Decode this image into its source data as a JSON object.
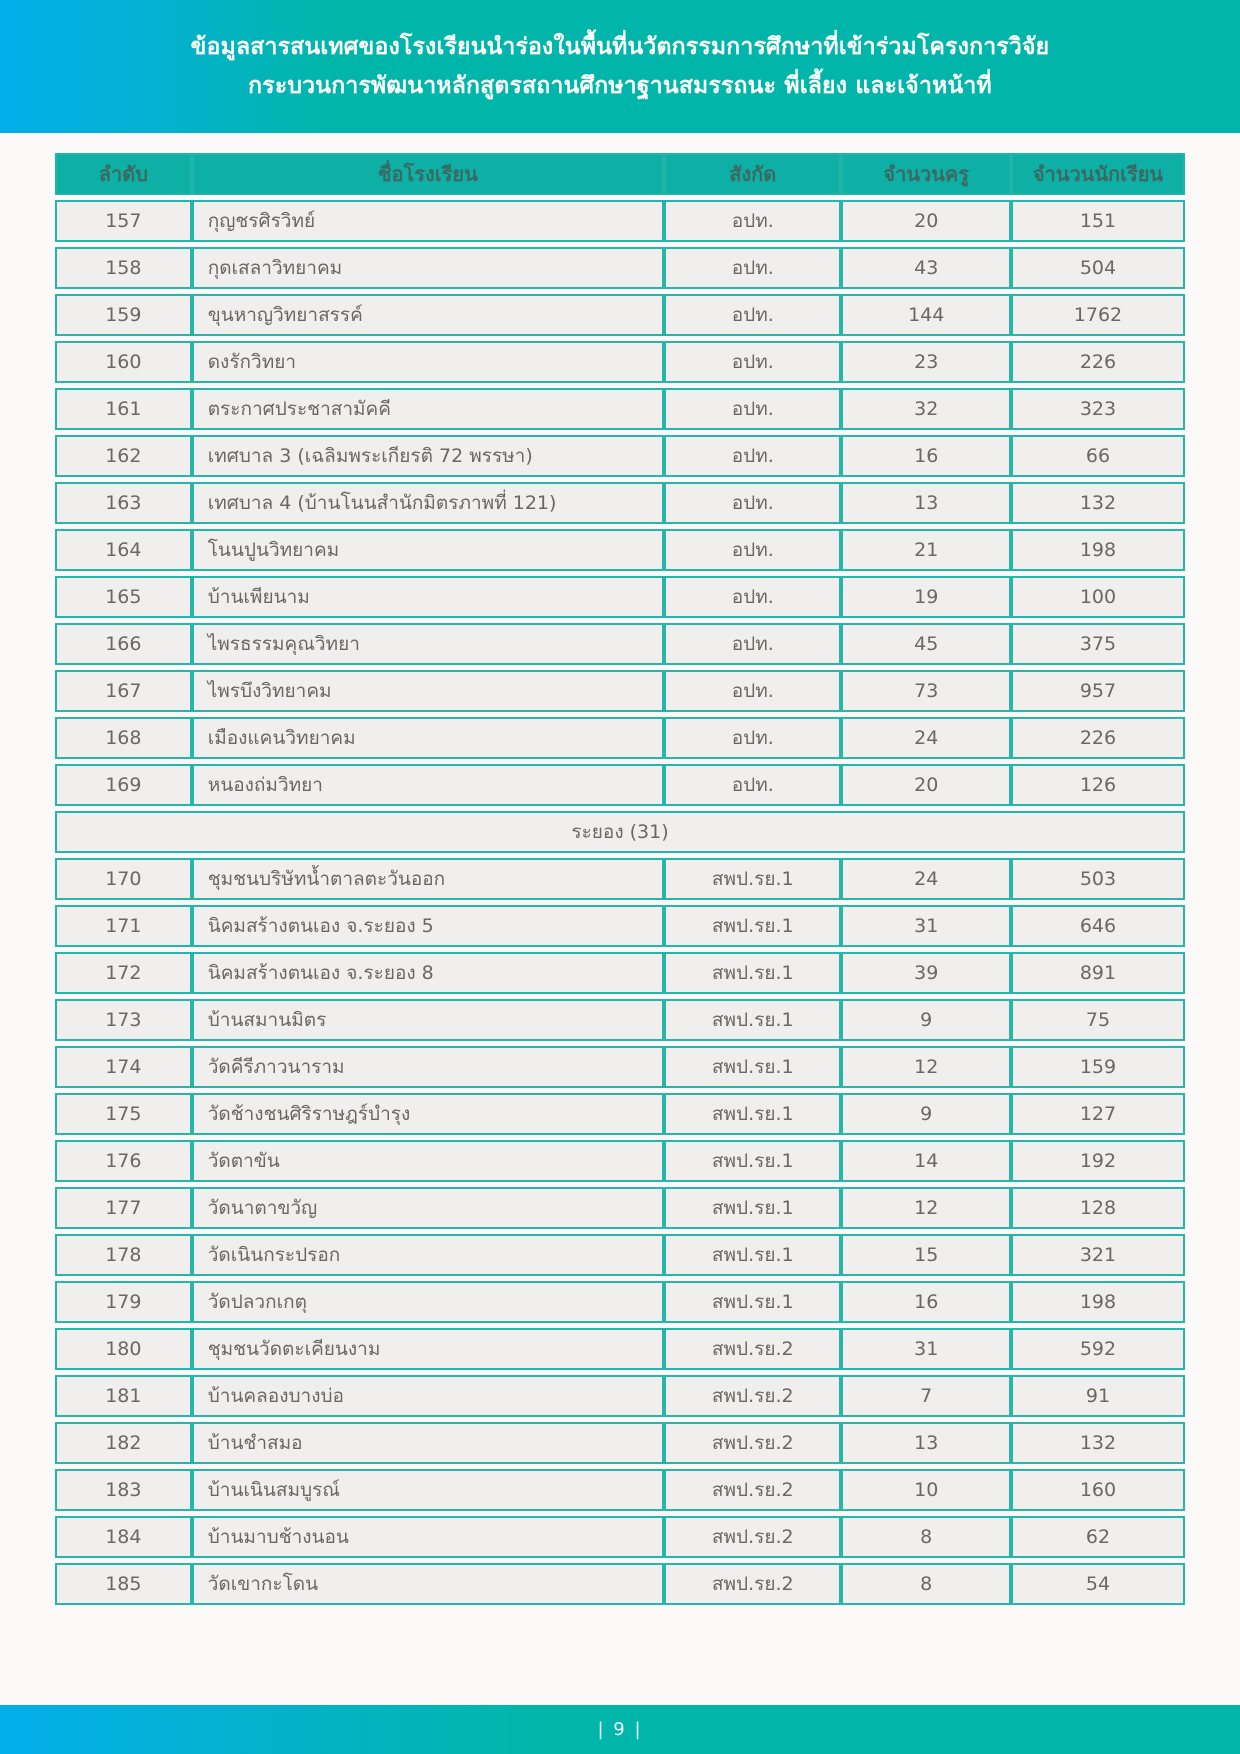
{
  "banner": {
    "line1": "ข้อมูลสารสนเทศของโรงเรียนนำร่องในพื้นที่นวัตกรรมการศึกษาที่เข้าร่วมโครงการวิจัย",
    "line2": "กระบวนการพัฒนาหลักสูตรสถานศึกษาฐานสมรรถนะ พี่เลี้ยง และเจ้าหน้าที่"
  },
  "table": {
    "columns": [
      "ลำดับ",
      "ชื่อโรงเรียน",
      "สังกัด",
      "จำนวนครู",
      "จำนวนนักเรียน"
    ],
    "rows": [
      {
        "type": "data",
        "no": "157",
        "name": "กุญชรศิรวิทย์",
        "org": "อปท.",
        "teachers": "20",
        "students": "151"
      },
      {
        "type": "data",
        "no": "158",
        "name": "กุดเสลาวิทยาคม",
        "org": "อปท.",
        "teachers": "43",
        "students": "504"
      },
      {
        "type": "data",
        "no": "159",
        "name": "ขุนหาญวิทยาสรรค์",
        "org": "อปท.",
        "teachers": "144",
        "students": "1762"
      },
      {
        "type": "data",
        "no": "160",
        "name": "ดงรักวิทยา",
        "org": "อปท.",
        "teachers": "23",
        "students": "226"
      },
      {
        "type": "data",
        "no": "161",
        "name": "ตระกาศประชาสามัคคี",
        "org": "อปท.",
        "teachers": "32",
        "students": "323"
      },
      {
        "type": "data",
        "no": "162",
        "name": "เทศบาล 3 (เฉลิมพระเกียรติ 72 พรรษา)",
        "org": "อปท.",
        "teachers": "16",
        "students": "66"
      },
      {
        "type": "data",
        "no": "163",
        "name": "เทศบาล 4 (บ้านโนนสำนักมิตรภาพที่ 121)",
        "org": "อปท.",
        "teachers": "13",
        "students": "132"
      },
      {
        "type": "data",
        "no": "164",
        "name": "โนนปูนวิทยาคม",
        "org": "อปท.",
        "teachers": "21",
        "students": "198"
      },
      {
        "type": "data",
        "no": "165",
        "name": "บ้านเพียนาม",
        "org": "อปท.",
        "teachers": "19",
        "students": "100"
      },
      {
        "type": "data",
        "no": "166",
        "name": "ไพรธรรมคุณวิทยา",
        "org": "อปท.",
        "teachers": "45",
        "students": "375"
      },
      {
        "type": "data",
        "no": "167",
        "name": "ไพรบึงวิทยาคม",
        "org": "อปท.",
        "teachers": "73",
        "students": "957"
      },
      {
        "type": "data",
        "no": "168",
        "name": "เมืองแคนวิทยาคม",
        "org": "อปท.",
        "teachers": "24",
        "students": "226"
      },
      {
        "type": "data",
        "no": "169",
        "name": "หนองถ่มวิทยา",
        "org": "อปท.",
        "teachers": "20",
        "students": "126"
      },
      {
        "type": "section",
        "label": "ระยอง (31)"
      },
      {
        "type": "data",
        "no": "170",
        "name": "ชุมชนบริษัทน้ำตาลตะวันออก",
        "org": "สพป.รย.1",
        "teachers": "24",
        "students": "503"
      },
      {
        "type": "data",
        "no": "171",
        "name": "นิคมสร้างตนเอง จ.ระยอง 5",
        "org": "สพป.รย.1",
        "teachers": "31",
        "students": "646"
      },
      {
        "type": "data",
        "no": "172",
        "name": "นิคมสร้างตนเอง จ.ระยอง 8",
        "org": "สพป.รย.1",
        "teachers": "39",
        "students": "891"
      },
      {
        "type": "data",
        "no": "173",
        "name": "บ้านสมานมิตร",
        "org": "สพป.รย.1",
        "teachers": "9",
        "students": "75"
      },
      {
        "type": "data",
        "no": "174",
        "name": "วัดคีรีภาวนาราม",
        "org": "สพป.รย.1",
        "teachers": "12",
        "students": "159"
      },
      {
        "type": "data",
        "no": "175",
        "name": "วัดช้างชนศิริราษฎร์บำรุง",
        "org": "สพป.รย.1",
        "teachers": "9",
        "students": "127"
      },
      {
        "type": "data",
        "no": "176",
        "name": "วัดตาขัน",
        "org": "สพป.รย.1",
        "teachers": "14",
        "students": "192"
      },
      {
        "type": "data",
        "no": "177",
        "name": "วัดนาตาขวัญ",
        "org": "สพป.รย.1",
        "teachers": "12",
        "students": "128"
      },
      {
        "type": "data",
        "no": "178",
        "name": "วัดเนินกระปรอก",
        "org": "สพป.รย.1",
        "teachers": "15",
        "students": "321"
      },
      {
        "type": "data",
        "no": "179",
        "name": "วัดปลวกเกตุ",
        "org": "สพป.รย.1",
        "teachers": "16",
        "students": "198"
      },
      {
        "type": "data",
        "no": "180",
        "name": "ชุมชนวัดตะเคียนงาม",
        "org": "สพป.รย.2",
        "teachers": "31",
        "students": "592"
      },
      {
        "type": "data",
        "no": "181",
        "name": "บ้านคลองบางบ่อ",
        "org": "สพป.รย.2",
        "teachers": "7",
        "students": "91"
      },
      {
        "type": "data",
        "no": "182",
        "name": "บ้านชำสมอ",
        "org": "สพป.รย.2",
        "teachers": "13",
        "students": "132"
      },
      {
        "type": "data",
        "no": "183",
        "name": "บ้านเนินสมบูรณ์",
        "org": "สพป.รย.2",
        "teachers": "10",
        "students": "160"
      },
      {
        "type": "data",
        "no": "184",
        "name": "บ้านมาบช้างนอน",
        "org": "สพป.รย.2",
        "teachers": "8",
        "students": "62"
      },
      {
        "type": "data",
        "no": "185",
        "name": "วัดเขากะโดน",
        "org": "สพป.รย.2",
        "teachers": "8",
        "students": "54"
      }
    ]
  },
  "footer": {
    "page_number": "| 9 |"
  },
  "colors": {
    "banner_gradient_left": "#01aee9",
    "banner_gradient_right": "#00b6ab",
    "table_border": "#26b6aa",
    "table_header_bg": "#0eb0a5",
    "table_header_text": "#3a6a63",
    "cell_bg": "#f1efee",
    "cell_text": "#6b6762",
    "footer_text": "#f2fdff"
  }
}
